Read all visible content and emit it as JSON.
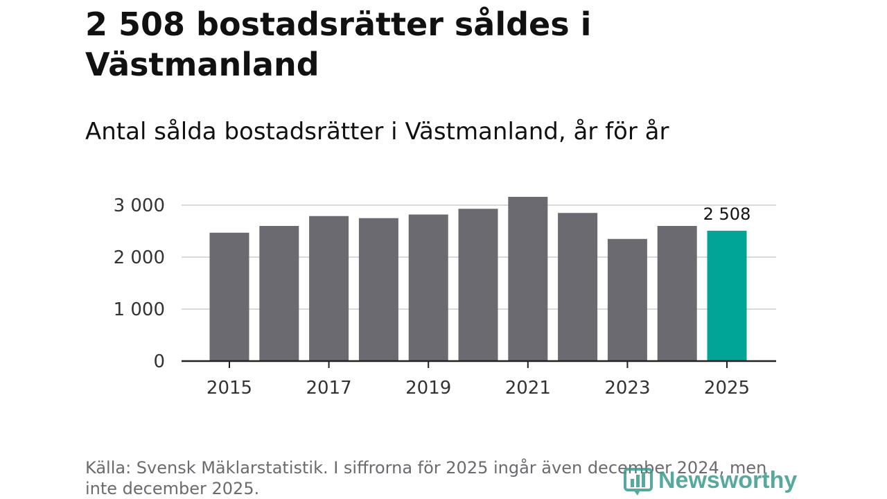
{
  "title": "2 508 bostadsrätter såldes i Västmanland",
  "subtitle": "Antal sålda bostadsrätter i Västmanland, år för år",
  "source": "Källa: Svensk Mäklarstatistik. I siffrorna för 2025 ingår även december 2024, men inte december 2025.",
  "brand": {
    "name": "Newsworthy",
    "color": "#3a9a8c"
  },
  "colors": {
    "bar": "#6b6a71",
    "highlight": "#00a598",
    "grid": "#d9d9d9",
    "axis": "#222222"
  },
  "chart_data": {
    "type": "bar",
    "title": "Antal sålda bostadsrätter i Västmanland, år för år",
    "categories": [
      "2015",
      "2016",
      "2017",
      "2018",
      "2019",
      "2020",
      "2021",
      "2022",
      "2023",
      "2024",
      "2025"
    ],
    "values": [
      2470,
      2600,
      2790,
      2750,
      2820,
      2930,
      3160,
      2850,
      2350,
      2600,
      2508
    ],
    "x_tick_labels": [
      "2015",
      "2017",
      "2019",
      "2021",
      "2023",
      "2025"
    ],
    "y_ticks": [
      0,
      1000,
      2000,
      3000
    ],
    "y_tick_labels": [
      "0",
      "1 000",
      "2 000",
      "3 000"
    ],
    "ylim": [
      0,
      3300
    ],
    "highlight_index": 10,
    "highlight_label": "2 508",
    "xlabel": "",
    "ylabel": "",
    "grid": true
  }
}
